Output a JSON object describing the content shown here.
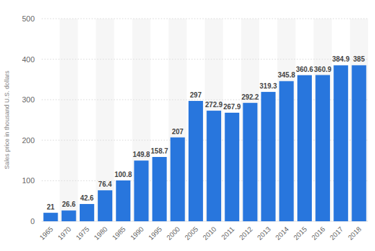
{
  "chart_data": {
    "type": "bar",
    "ylabel": "Sales price in thousand U.S. dollars",
    "categories": [
      "1965",
      "1970",
      "1975",
      "1980",
      "1985",
      "1990",
      "1995",
      "2000",
      "2005",
      "2010",
      "2011",
      "2012",
      "2013",
      "2014",
      "2015",
      "2016",
      "2017",
      "2018"
    ],
    "values": [
      21,
      26.6,
      42.6,
      76.4,
      100.8,
      149.8,
      158.7,
      207,
      297,
      272.9,
      267.9,
      292.2,
      319.3,
      345.8,
      360.6,
      360.9,
      384.9,
      385
    ],
    "color": "#2876dd",
    "ylim": [
      0,
      500
    ],
    "yticks": [
      0,
      100,
      200,
      300,
      400,
      500
    ],
    "grid": true,
    "data_labels": true
  }
}
